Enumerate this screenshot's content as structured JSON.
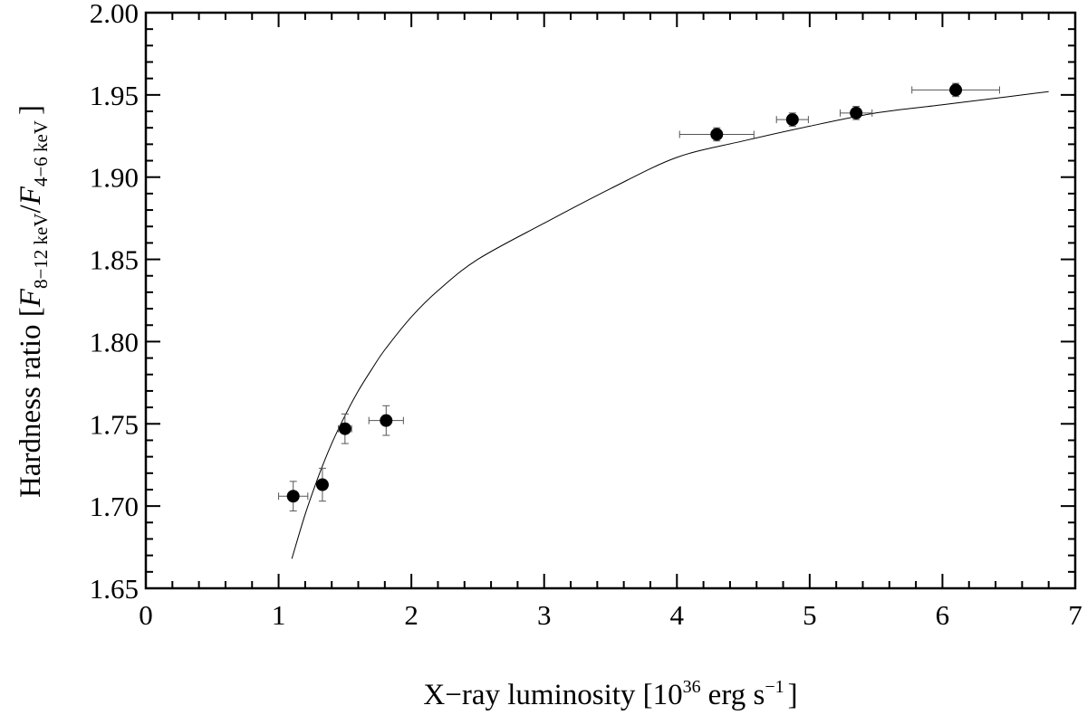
{
  "chart_data": {
    "type": "scatter",
    "xlabel": {
      "prefix": "X−ray luminosity [10",
      "exp": "36",
      "unit_a": "erg s",
      "unit_exp": "−1",
      "suffix": "]"
    },
    "ylabel": {
      "prefix": "Hardness ratio [",
      "f1": "F",
      "sub1": "8−12 keV",
      "slash": "/",
      "f2": "F",
      "sub2": "4−6 keV",
      "suffix": "]"
    },
    "xlim": [
      0,
      7
    ],
    "ylim": [
      1.65,
      2.0
    ],
    "x_ticks": [
      0,
      1,
      2,
      3,
      4,
      5,
      6,
      7
    ],
    "x_tick_labels": [
      "0",
      "1",
      "2",
      "3",
      "4",
      "5",
      "6",
      "7"
    ],
    "y_ticks": [
      1.65,
      1.7,
      1.75,
      1.8,
      1.85,
      1.9,
      1.95,
      2.0
    ],
    "y_tick_labels": [
      "1.65",
      "1.70",
      "1.75",
      "1.80",
      "1.85",
      "1.90",
      "1.95",
      "2.00"
    ],
    "grid": false,
    "points": [
      {
        "x": 1.11,
        "y": 1.706,
        "xerr": 0.11,
        "yerr": 0.009
      },
      {
        "x": 1.33,
        "y": 1.713,
        "xerr": 0.03,
        "yerr": 0.01
      },
      {
        "x": 1.5,
        "y": 1.747,
        "xerr": 0.05,
        "yerr": 0.009
      },
      {
        "x": 1.81,
        "y": 1.752,
        "xerr": 0.13,
        "yerr": 0.009
      },
      {
        "x": 4.3,
        "y": 1.926,
        "xerr": 0.28,
        "yerr": 0.004
      },
      {
        "x": 4.87,
        "y": 1.935,
        "xerr": 0.12,
        "yerr": 0.004
      },
      {
        "x": 5.35,
        "y": 1.939,
        "xerr": 0.12,
        "yerr": 0.004
      },
      {
        "x": 6.1,
        "y": 1.953,
        "xerr": 0.33,
        "yerr": 0.004
      }
    ],
    "fit_curve": {
      "x": [
        1.1,
        1.2,
        1.3,
        1.4,
        1.5,
        1.6,
        1.7,
        1.8,
        2.0,
        2.2,
        2.5,
        3.0,
        3.5,
        4.0,
        4.5,
        5.0,
        5.5,
        6.0,
        6.5,
        6.8
      ],
      "y": [
        1.668,
        1.695,
        1.718,
        1.738,
        1.755,
        1.77,
        1.783,
        1.795,
        1.815,
        1.831,
        1.85,
        1.872,
        1.893,
        1.912,
        1.922,
        1.931,
        1.939,
        1.944,
        1.949,
        1.952
      ]
    }
  }
}
